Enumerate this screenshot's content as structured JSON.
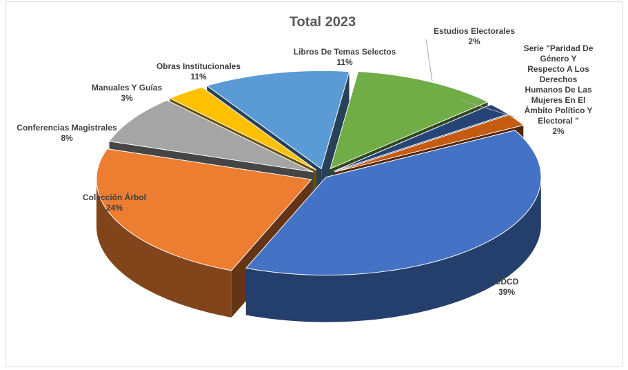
{
  "chart_data": {
    "type": "pie",
    "title": "Total 2023",
    "series": [
      {
        "label": [
          "Libros De Temas Selectos"
        ],
        "pct": "11%",
        "value": 11,
        "color": "#70ad47"
      },
      {
        "label": [
          "Estudios  Electorales"
        ],
        "pct": "2%",
        "value": 2,
        "color": "#264478"
      },
      {
        "label": [
          "Serie \"Paridad De",
          "Género Y",
          "Respecto A Los",
          "Derechos",
          "Humanos  De Las",
          "Mujeres En El",
          "Ámbito Político Y",
          "Electoral \""
        ],
        "pct": "2%",
        "value": 2,
        "color": "#c55a11"
      },
      {
        "label": [
          "CDCD"
        ],
        "pct": "39%",
        "value": 39,
        "color": "#4472c4"
      },
      {
        "label": [
          "Colección  Árbol"
        ],
        "pct": "24%",
        "value": 24,
        "color": "#ed7d31"
      },
      {
        "label": [
          "Conferencias Magistrales"
        ],
        "pct": "8%",
        "value": 8,
        "color": "#a5a5a5"
      },
      {
        "label": [
          "Manuales Y Guías"
        ],
        "pct": "3%",
        "value": 3,
        "color": "#ffc000"
      },
      {
        "label": [
          "Obras Institucionales"
        ],
        "pct": "11%",
        "value": 11,
        "color": "#5b9bd5"
      }
    ]
  }
}
